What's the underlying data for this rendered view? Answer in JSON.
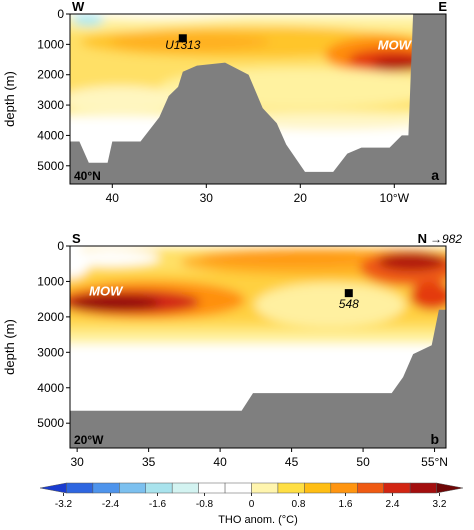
{
  "chart_data": [
    {
      "type": "heatmap",
      "panel_label": "a",
      "section_label": "40°N",
      "left_label": "W",
      "right_label": "E",
      "ylabel": "depth (m)",
      "y_ticks": [
        "0",
        "1000",
        "2000",
        "3000",
        "4000",
        "5000"
      ],
      "x_ticks": [
        "40",
        "30",
        "20",
        "10°W"
      ],
      "x_tick_values": [
        40,
        30,
        20,
        10
      ],
      "xlim": [
        44.5,
        4.5
      ],
      "ylim": [
        5600,
        0
      ],
      "annotations": [
        {
          "text": "U1313",
          "x": 32.5,
          "y": 1150
        },
        {
          "text": "MOW",
          "x": 10,
          "y": 1170
        }
      ],
      "site_marker": {
        "x": 32.5,
        "y": 800
      },
      "bathymetry": [
        {
          "x": 44.5,
          "y": 4200
        },
        {
          "x": 43.5,
          "y": 4200
        },
        {
          "x": 42.5,
          "y": 4900
        },
        {
          "x": 40.5,
          "y": 4900
        },
        {
          "x": 40,
          "y": 4200
        },
        {
          "x": 37,
          "y": 4200
        },
        {
          "x": 36,
          "y": 3800
        },
        {
          "x": 35,
          "y": 3400
        },
        {
          "x": 34,
          "y": 2700
        },
        {
          "x": 33,
          "y": 2400
        },
        {
          "x": 32.5,
          "y": 1900
        },
        {
          "x": 31,
          "y": 1700
        },
        {
          "x": 28,
          "y": 1600
        },
        {
          "x": 25.5,
          "y": 2000
        },
        {
          "x": 24,
          "y": 3100
        },
        {
          "x": 22.5,
          "y": 3600
        },
        {
          "x": 21.5,
          "y": 4300
        },
        {
          "x": 19.5,
          "y": 5200
        },
        {
          "x": 16.5,
          "y": 5200
        },
        {
          "x": 15,
          "y": 4600
        },
        {
          "x": 13.5,
          "y": 4400
        },
        {
          "x": 10.5,
          "y": 4400
        },
        {
          "x": 9.2,
          "y": 4000
        },
        {
          "x": 8.5,
          "y": 4000
        },
        {
          "x": 8,
          "y": 0
        },
        {
          "x": 4.5,
          "y": 0
        }
      ]
    },
    {
      "type": "heatmap",
      "panel_label": "b",
      "section_label": "20°W",
      "left_label": "S",
      "right_label": "N",
      "right_note": "→982",
      "ylabel": "depth (m)",
      "y_ticks": [
        "0",
        "1000",
        "2000",
        "3000",
        "4000",
        "5000"
      ],
      "x_ticks": [
        "30",
        "35",
        "40",
        "45",
        "50",
        "55°N"
      ],
      "x_tick_values": [
        30,
        35,
        40,
        45,
        50,
        55
      ],
      "xlim": [
        29.5,
        55.8
      ],
      "ylim": [
        5700,
        0
      ],
      "annotations": [
        {
          "text": "548",
          "x": 49,
          "y": 1750
        },
        {
          "text": "MOW",
          "x": 32,
          "y": 1400
        }
      ],
      "site_marker": {
        "x": 49,
        "y": 1330
      },
      "bathymetry": [
        {
          "x": 29.5,
          "y": 4650
        },
        {
          "x": 41.5,
          "y": 4650
        },
        {
          "x": 42.3,
          "y": 4150
        },
        {
          "x": 52,
          "y": 4150
        },
        {
          "x": 52.8,
          "y": 3700
        },
        {
          "x": 53.5,
          "y": 3050
        },
        {
          "x": 54.8,
          "y": 2800
        },
        {
          "x": 55.3,
          "y": 1800
        },
        {
          "x": 55.8,
          "y": 1800
        }
      ]
    }
  ],
  "colorbar": {
    "label": "THO anom. (°C)",
    "ticks": [
      "-3.2",
      "-2.4",
      "-1.6",
      "-0.8",
      "0",
      "0.8",
      "1.6",
      "2.4",
      "3.2"
    ],
    "range": [
      -3.6,
      3.6
    ],
    "colors": [
      "#1a3ccf",
      "#2e66e0",
      "#4e94ec",
      "#7cc0ef",
      "#a9e3ed",
      "#d3f3f1",
      "#ffffff",
      "#ffffff",
      "#fff5ae",
      "#ffdf44",
      "#ffbe14",
      "#ff9510",
      "#ef5a12",
      "#d22512",
      "#a30e0e",
      "#6e0606"
    ]
  }
}
